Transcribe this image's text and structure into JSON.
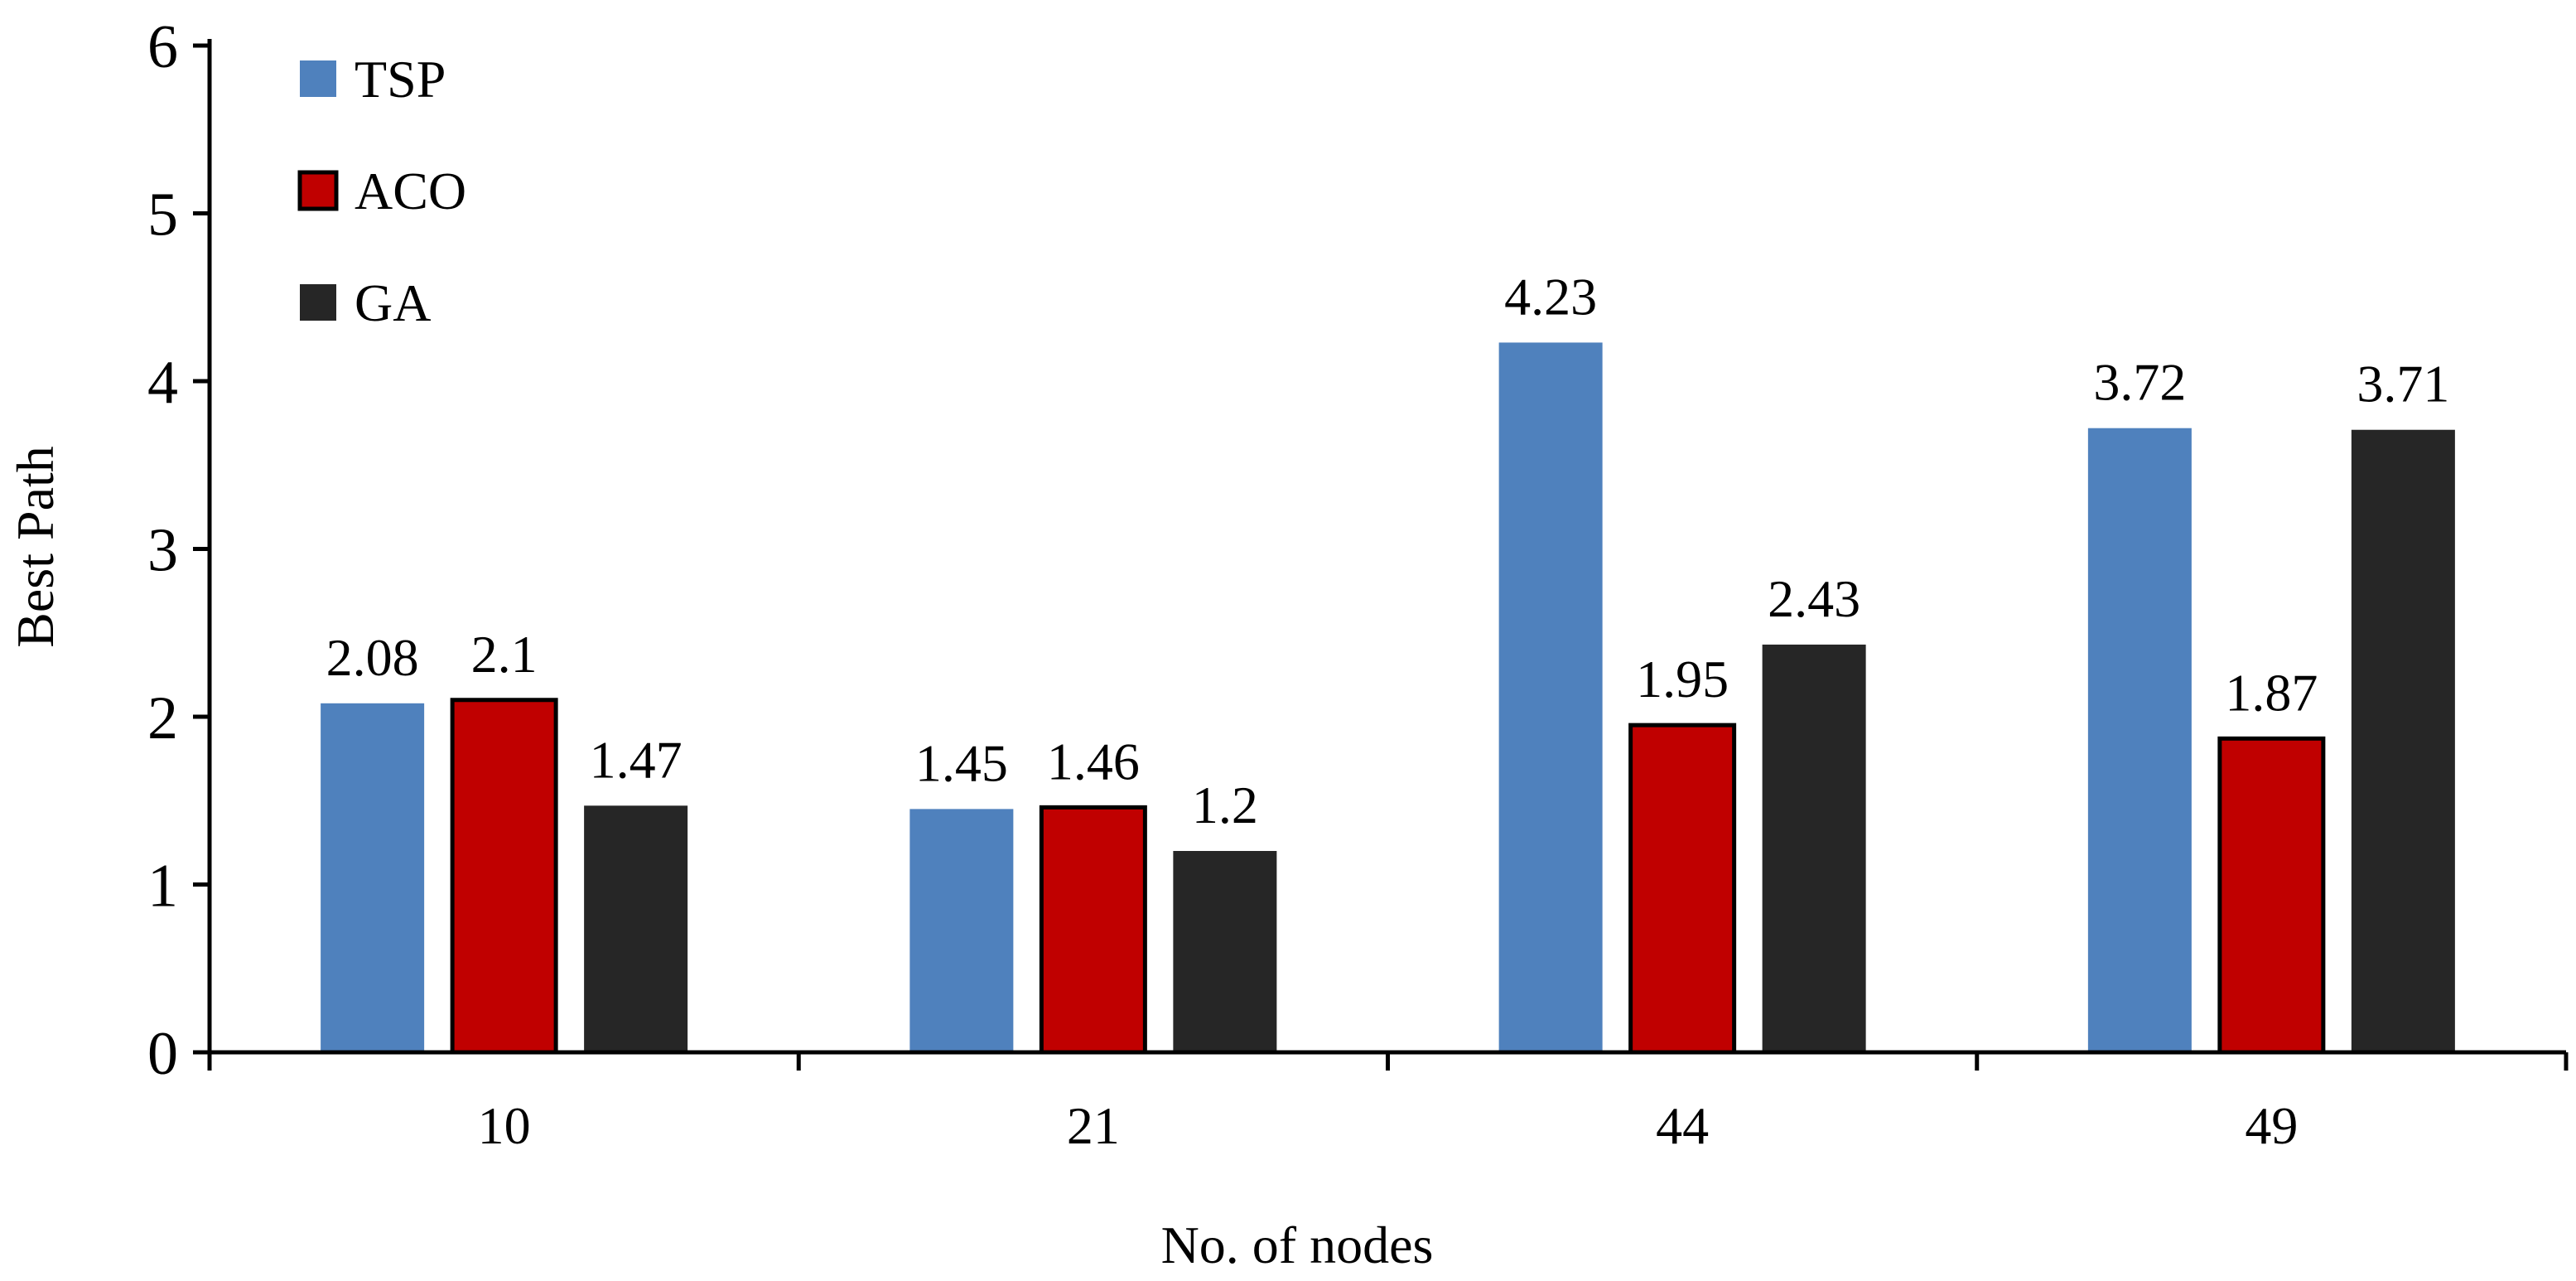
{
  "chart_data": {
    "type": "bar",
    "categories": [
      "10",
      "21",
      "44",
      "49"
    ],
    "series": [
      {
        "name": "TSP",
        "values": [
          2.08,
          1.45,
          4.23,
          3.72
        ],
        "color": "#4f81bd",
        "outlined": false
      },
      {
        "name": "ACO",
        "values": [
          2.1,
          1.46,
          1.95,
          1.87
        ],
        "color": "#c00000",
        "outlined": true
      },
      {
        "name": "GA",
        "values": [
          1.47,
          1.2,
          2.43,
          3.71
        ],
        "color": "#262626",
        "outlined": false
      }
    ],
    "data_labels": [
      [
        "2.08",
        "1.45",
        "4.23",
        "3.72"
      ],
      [
        "2.1",
        "1.46",
        "1.95",
        "1.87"
      ],
      [
        "1.47",
        "1.2",
        "2.43",
        "3.71"
      ]
    ],
    "title": "",
    "xlabel": "No. of nodes",
    "ylabel": "Best Path",
    "ylim": [
      0,
      6
    ],
    "yticks": [
      0,
      1,
      2,
      3,
      4,
      5,
      6
    ],
    "grid": false,
    "legend_position": "top-left"
  }
}
